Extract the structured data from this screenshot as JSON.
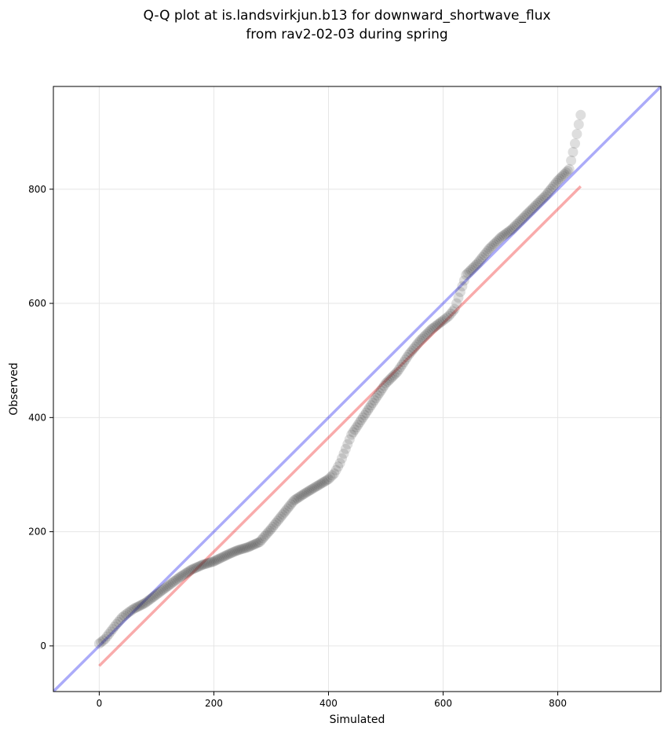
{
  "chart_data": {
    "type": "scatter",
    "title_lines": [
      "Q-Q plot at is.landsvirkjun.b13 for downward_shortwave_flux",
      "from rav2-02-03 during spring"
    ],
    "xlabel": "Simulated",
    "ylabel": "Observed",
    "xlim": [
      -80,
      980
    ],
    "ylim": [
      -80,
      980
    ],
    "xticks": [
      0,
      200,
      400,
      600,
      800
    ],
    "yticks": [
      0,
      200,
      400,
      600,
      800
    ],
    "grid": true,
    "colors": {
      "points": "#333333",
      "identity_line": "#0000ee",
      "fit_line": "#ee0000",
      "grid": "#e6e6e6"
    },
    "identity_line": {
      "x": [
        -80,
        980
      ],
      "y": [
        -80,
        980
      ]
    },
    "fit_line": {
      "x": [
        0,
        840
      ],
      "y": [
        -35,
        805
      ]
    },
    "quantile_knots": {
      "x": [
        0,
        10,
        20,
        30,
        40,
        50,
        60,
        80,
        100,
        120,
        140,
        160,
        180,
        200,
        220,
        240,
        260,
        280,
        300,
        320,
        340,
        360,
        380,
        400,
        410,
        420,
        430,
        440,
        460,
        480,
        500,
        520,
        540,
        560,
        580,
        600,
        610,
        620,
        630,
        640,
        660,
        680,
        700,
        720,
        740,
        760,
        780,
        800,
        820,
        830,
        840
      ],
      "y": [
        4,
        12,
        25,
        38,
        50,
        58,
        65,
        75,
        90,
        105,
        120,
        133,
        142,
        148,
        158,
        167,
        173,
        182,
        205,
        230,
        255,
        268,
        280,
        292,
        302,
        320,
        345,
        370,
        400,
        430,
        460,
        480,
        510,
        535,
        555,
        570,
        578,
        590,
        620,
        650,
        670,
        695,
        715,
        730,
        750,
        770,
        790,
        815,
        835,
        880,
        930
      ]
    }
  }
}
